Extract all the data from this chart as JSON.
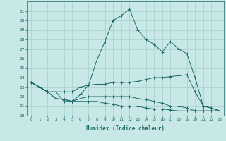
{
  "xlabel": "Humidex (Indice chaleur)",
  "background_color": "#c8e8e8",
  "grid_color": "#a8cccc",
  "line_color": "#1a6868",
  "x_values": [
    0,
    1,
    2,
    3,
    4,
    5,
    6,
    7,
    8,
    9,
    10,
    11,
    12,
    13,
    14,
    15,
    16,
    17,
    18,
    19,
    20,
    21,
    22,
    23
  ],
  "series": [
    [
      23.5,
      23.0,
      22.5,
      21.8,
      21.7,
      21.5,
      22.2,
      23.2,
      25.8,
      27.8,
      30.0,
      30.5,
      31.2,
      29.0,
      28.0,
      27.5,
      26.7,
      27.8,
      27.0,
      26.5,
      24.0,
      21.0,
      20.8,
      20.5
    ],
    [
      23.5,
      23.0,
      22.5,
      22.5,
      22.5,
      22.5,
      23.0,
      23.2,
      23.3,
      23.3,
      23.5,
      23.5,
      23.5,
      23.6,
      23.8,
      24.0,
      24.0,
      24.1,
      24.2,
      24.3,
      22.5,
      21.0,
      20.8,
      20.5
    ],
    [
      23.5,
      23.0,
      22.5,
      22.5,
      21.5,
      21.5,
      21.8,
      22.0,
      22.0,
      22.0,
      22.0,
      22.0,
      22.0,
      21.8,
      21.7,
      21.5,
      21.3,
      21.0,
      21.0,
      20.8,
      20.5,
      20.5,
      20.5,
      20.5
    ],
    [
      23.5,
      23.0,
      22.5,
      21.8,
      21.7,
      21.5,
      21.5,
      21.5,
      21.5,
      21.3,
      21.2,
      21.0,
      21.0,
      21.0,
      20.8,
      20.7,
      20.7,
      20.6,
      20.5,
      20.5,
      20.5,
      20.5,
      20.5,
      20.5
    ]
  ],
  "ylim": [
    20,
    32
  ],
  "yticks": [
    20,
    21,
    22,
    23,
    24,
    25,
    26,
    27,
    28,
    29,
    30,
    31
  ],
  "xlim": [
    -0.5,
    23.5
  ],
  "marker": "+"
}
